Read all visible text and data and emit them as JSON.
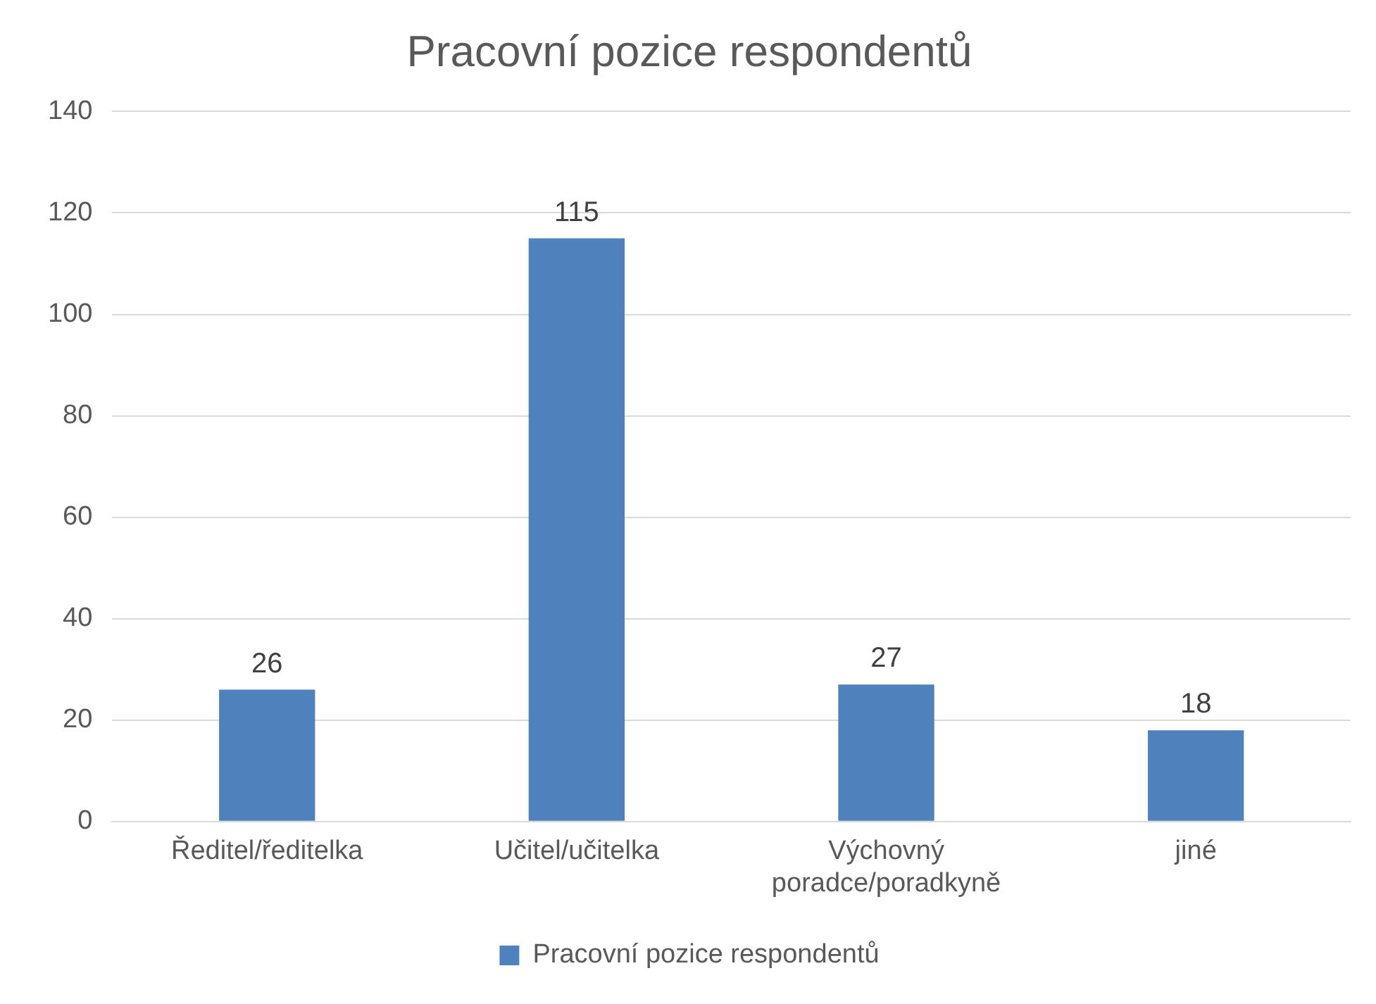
{
  "chart_data": {
    "type": "bar",
    "title": "Pracovní pozice respondentů",
    "categories": [
      "Ředitel/ředitelka",
      "Učitel/učitelka",
      "Výchovný poradce/poradkyně",
      "jiné"
    ],
    "series": [
      {
        "name": "Pracovní pozice respondentů",
        "color": "#4f81bd",
        "values": [
          26,
          115,
          27,
          18
        ]
      }
    ],
    "ylim": [
      0,
      140
    ],
    "yticks": [
      0,
      20,
      40,
      60,
      80,
      100,
      120,
      140
    ],
    "grid": "y",
    "legend": "bottom",
    "data_labels": true
  }
}
